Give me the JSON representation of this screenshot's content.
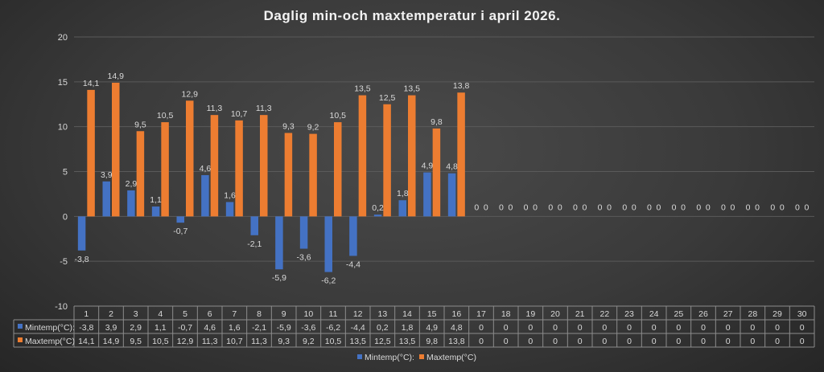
{
  "chart_data": {
    "type": "bar",
    "title": "Daglig min-och maxtemperatur i april 2026.",
    "xlabel": "",
    "ylabel": "",
    "ylim": [
      -10,
      20
    ],
    "yticks": [
      20,
      15,
      10,
      5,
      0,
      -5,
      -10
    ],
    "grid": true,
    "legend_position": "bottom",
    "categories": [
      "1",
      "2",
      "3",
      "4",
      "5",
      "6",
      "7",
      "8",
      "9",
      "10",
      "11",
      "12",
      "13",
      "14",
      "15",
      "16",
      "17",
      "18",
      "19",
      "20",
      "21",
      "22",
      "23",
      "24",
      "25",
      "26",
      "27",
      "28",
      "29",
      "30"
    ],
    "series": [
      {
        "name": "Mintemp(°C):",
        "color": "#4472c4",
        "values": [
          -3.8,
          3.9,
          2.9,
          1.1,
          -0.7,
          4.6,
          1.6,
          -2.1,
          -5.9,
          -3.6,
          -6.2,
          -4.4,
          0.2,
          1.8,
          4.9,
          4.8,
          0,
          0,
          0,
          0,
          0,
          0,
          0,
          0,
          0,
          0,
          0,
          0,
          0,
          0
        ],
        "labels": [
          "-3,8",
          "3,9",
          "2,9",
          "1,1",
          "-0,7",
          "4,6",
          "1,6",
          "-2,1",
          "-5,9",
          "-3,6",
          "-6,2",
          "-4,4",
          "0,2",
          "1,8",
          "4,9",
          "4,8",
          "0",
          "0",
          "0",
          "0",
          "0",
          "0",
          "0",
          "0",
          "0",
          "0",
          "0",
          "0",
          "0",
          "0"
        ]
      },
      {
        "name": "Maxtemp(°C)",
        "color": "#ed7d31",
        "values": [
          14.1,
          14.9,
          9.5,
          10.5,
          12.9,
          11.3,
          10.7,
          11.3,
          9.3,
          9.2,
          10.5,
          13.5,
          12.5,
          13.5,
          9.8,
          13.8,
          0,
          0,
          0,
          0,
          0,
          0,
          0,
          0,
          0,
          0,
          0,
          0,
          0,
          0
        ],
        "labels": [
          "14,1",
          "14,9",
          "9,5",
          "10,5",
          "12,9",
          "11,3",
          "10,7",
          "11,3",
          "9,3",
          "9,2",
          "10,5",
          "13,5",
          "12,5",
          "13,5",
          "9,8",
          "13,8",
          "0",
          "0",
          "0",
          "0",
          "0",
          "0",
          "0",
          "0",
          "0",
          "0",
          "0",
          "0",
          "0",
          "0"
        ]
      }
    ],
    "table": {
      "row_labels": [
        "Mintemp(°C):",
        "Maxtemp(°C)"
      ]
    },
    "legend": [
      "Mintemp(°C):",
      "Maxtemp(°C)"
    ]
  }
}
